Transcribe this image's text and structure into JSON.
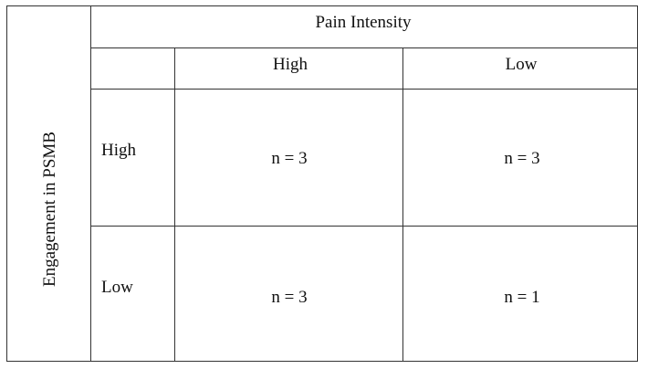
{
  "table": {
    "column_group_header": "Pain Intensity",
    "row_group_header": "Engagement in PSMB",
    "column_headers": [
      "High",
      "Low"
    ],
    "rows": [
      {
        "label": "High",
        "cells": [
          "n = 3",
          "n = 3"
        ]
      },
      {
        "label": "Low",
        "cells": [
          "n = 3",
          "n = 1"
        ]
      }
    ]
  }
}
